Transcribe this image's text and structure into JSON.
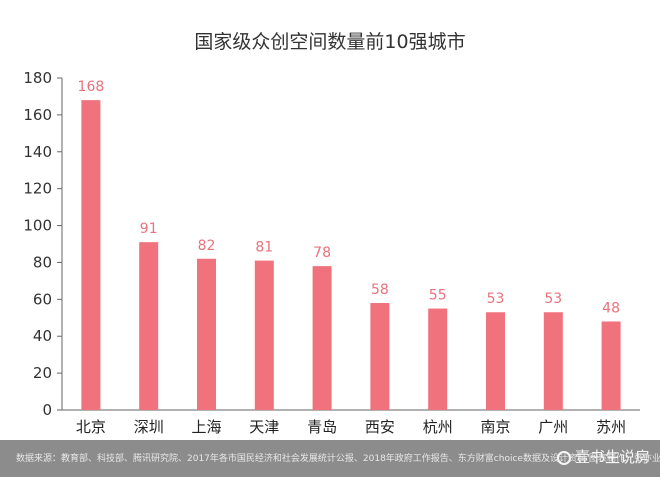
{
  "chart_data": {
    "type": "bar",
    "title": "国家级众创空间数量前10强城市",
    "xlabel": "",
    "ylabel": "",
    "categories": [
      "北京",
      "深圳",
      "上海",
      "天津",
      "青岛",
      "西安",
      "杭州",
      "南京",
      "广州",
      "苏州"
    ],
    "values": [
      168,
      91,
      82,
      81,
      78,
      58,
      55,
      53,
      53,
      48
    ],
    "ylim": [
      0,
      180
    ],
    "yticks": [
      0,
      20,
      40,
      60,
      80,
      100,
      120,
      140,
      160,
      180
    ],
    "bar_color": "#f0727c",
    "label_color": "#e8737d",
    "grid": false,
    "legend": "none"
  },
  "footer": {
    "source": "数据来源：教育部、科技部、腾讯研究院、2017年各市国民经济和社会发展统计公报、2018年政府工作报告、东方财富choice数据及设计资料  图表制作：张亦业",
    "watermark": "壹书生说房",
    "watermark_icon": "wechat-icon"
  }
}
